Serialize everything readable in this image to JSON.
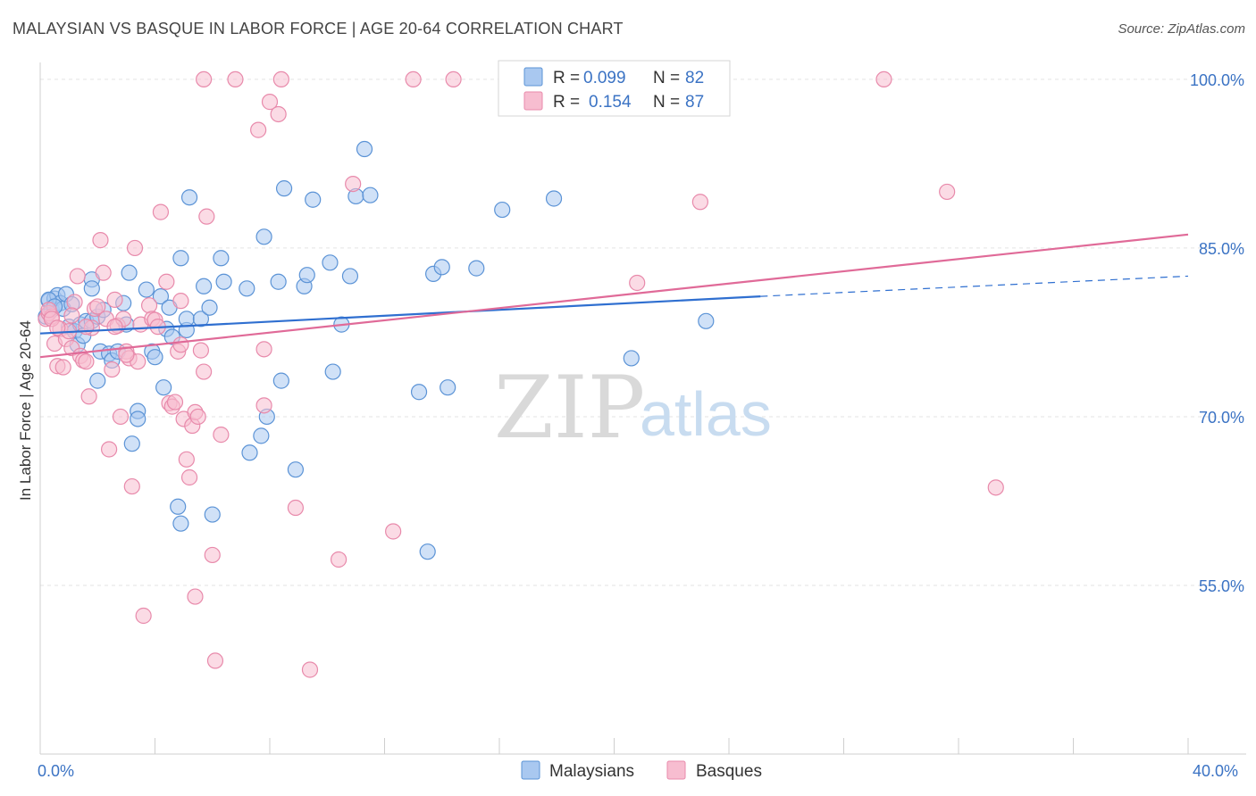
{
  "title": "MALAYSIAN VS BASQUE IN LABOR FORCE | AGE 20-64 CORRELATION CHART",
  "source": "Source: ZipAtlas.com",
  "watermark": {
    "zip": "ZIP",
    "atlas": "atlas"
  },
  "colors": {
    "blue_fill": "#a9c8f0",
    "blue_stroke": "#5b93d6",
    "blue_line": "#2f6fd0",
    "pink_fill": "#f7bdd0",
    "pink_stroke": "#e88aab",
    "pink_line": "#e06a98",
    "tick_text": "#3b73c4",
    "grid": "#e3e3e3"
  },
  "legend": [
    {
      "r_label": "R =",
      "r_value": "0.099",
      "n_label": "N =",
      "n_value": "82"
    },
    {
      "r_label": "R =",
      "r_value": "0.154",
      "n_label": "N =",
      "n_value": "87"
    }
  ],
  "chart_data": {
    "type": "scatter",
    "title": "MALAYSIAN VS BASQUE IN LABOR FORCE | AGE 20-64 CORRELATION CHART",
    "xlabel": "",
    "ylabel": "In Labor Force | Age 20-64",
    "xlim": [
      0,
      40
    ],
    "ylim": [
      40,
      101.5
    ],
    "x_tick_labels": [
      "0.0%",
      "40.0%"
    ],
    "y_ticks": [
      55,
      70,
      85,
      100
    ],
    "y_tick_labels": [
      "55.0%",
      "70.0%",
      "85.0%",
      "100.0%"
    ],
    "grid": true,
    "series": [
      {
        "name": "Malaysians",
        "R": 0.099,
        "N": 82,
        "trend": {
          "x0": 0,
          "y0": 77.4,
          "x1": 25.1,
          "y1": 80.7,
          "dash_to_x": 40,
          "dash_to_y": 82.5
        },
        "points": [
          [
            0.3,
            80.3
          ],
          [
            0.4,
            79.5
          ],
          [
            0.5,
            80.5
          ],
          [
            0.6,
            80.8
          ],
          [
            0.7,
            80.1
          ],
          [
            0.8,
            79.6
          ],
          [
            0.9,
            80.9
          ],
          [
            1.0,
            78.0
          ],
          [
            1.1,
            80.0
          ],
          [
            1.2,
            77.6
          ],
          [
            1.3,
            76.4
          ],
          [
            1.4,
            78.2
          ],
          [
            1.5,
            77.2
          ],
          [
            1.6,
            78.5
          ],
          [
            1.8,
            78.5
          ],
          [
            1.8,
            82.2
          ],
          [
            1.8,
            81.4
          ],
          [
            2.0,
            78.9
          ],
          [
            2.0,
            73.2
          ],
          [
            2.1,
            75.8
          ],
          [
            2.2,
            79.5
          ],
          [
            2.4,
            75.6
          ],
          [
            2.5,
            75.0
          ],
          [
            2.7,
            75.8
          ],
          [
            2.9,
            80.1
          ],
          [
            3.0,
            78.2
          ],
          [
            3.1,
            82.8
          ],
          [
            3.2,
            67.6
          ],
          [
            3.4,
            70.5
          ],
          [
            3.4,
            69.8
          ],
          [
            3.7,
            81.3
          ],
          [
            3.9,
            75.8
          ],
          [
            4.0,
            75.3
          ],
          [
            4.2,
            80.7
          ],
          [
            4.3,
            72.6
          ],
          [
            4.4,
            77.8
          ],
          [
            4.5,
            79.7
          ],
          [
            4.6,
            77.1
          ],
          [
            4.8,
            62.0
          ],
          [
            4.9,
            60.5
          ],
          [
            4.9,
            84.1
          ],
          [
            5.1,
            77.7
          ],
          [
            5.1,
            78.7
          ],
          [
            5.2,
            89.5
          ],
          [
            5.6,
            78.7
          ],
          [
            5.7,
            81.6
          ],
          [
            5.9,
            79.7
          ],
          [
            6.0,
            61.3
          ],
          [
            6.3,
            84.1
          ],
          [
            6.4,
            82.0
          ],
          [
            7.2,
            81.4
          ],
          [
            7.3,
            66.8
          ],
          [
            7.7,
            68.3
          ],
          [
            7.8,
            86.0
          ],
          [
            7.9,
            70.0
          ],
          [
            8.3,
            82.0
          ],
          [
            8.4,
            73.2
          ],
          [
            8.5,
            90.3
          ],
          [
            8.9,
            65.3
          ],
          [
            9.2,
            81.6
          ],
          [
            9.3,
            82.6
          ],
          [
            9.5,
            89.3
          ],
          [
            10.1,
            83.7
          ],
          [
            10.2,
            74.0
          ],
          [
            10.5,
            78.2
          ],
          [
            10.8,
            82.5
          ],
          [
            11.0,
            89.6
          ],
          [
            11.5,
            89.7
          ],
          [
            11.3,
            93.8
          ],
          [
            13.2,
            72.2
          ],
          [
            13.5,
            58.0
          ],
          [
            13.7,
            82.7
          ],
          [
            14.0,
            83.3
          ],
          [
            14.2,
            72.6
          ],
          [
            15.2,
            83.2
          ],
          [
            16.1,
            88.4
          ],
          [
            17.9,
            89.4
          ],
          [
            20.6,
            75.2
          ],
          [
            23.2,
            78.5
          ],
          [
            0.2,
            78.9
          ],
          [
            0.3,
            80.4
          ],
          [
            0.5,
            79.8
          ]
        ]
      },
      {
        "name": "Basques",
        "R": 0.154,
        "N": 87,
        "trend": {
          "x0": 0,
          "y0": 75.3,
          "x1": 40,
          "y1": 86.2
        },
        "points": [
          [
            0.2,
            78.7
          ],
          [
            0.3,
            79.2
          ],
          [
            0.4,
            78.9
          ],
          [
            0.5,
            76.5
          ],
          [
            0.6,
            74.5
          ],
          [
            0.7,
            77.8
          ],
          [
            0.8,
            74.4
          ],
          [
            0.9,
            76.9
          ],
          [
            1.0,
            77.6
          ],
          [
            1.1,
            76.1
          ],
          [
            1.2,
            80.2
          ],
          [
            1.3,
            82.5
          ],
          [
            1.4,
            75.4
          ],
          [
            1.5,
            75.0
          ],
          [
            1.6,
            74.9
          ],
          [
            1.7,
            71.8
          ],
          [
            1.8,
            77.9
          ],
          [
            1.9,
            79.6
          ],
          [
            2.0,
            79.8
          ],
          [
            2.1,
            85.7
          ],
          [
            2.2,
            82.8
          ],
          [
            2.3,
            78.7
          ],
          [
            2.4,
            67.1
          ],
          [
            2.5,
            74.2
          ],
          [
            2.6,
            80.4
          ],
          [
            2.7,
            78.1
          ],
          [
            2.8,
            70.0
          ],
          [
            2.9,
            78.7
          ],
          [
            3.0,
            75.8
          ],
          [
            3.1,
            75.2
          ],
          [
            3.2,
            63.8
          ],
          [
            3.3,
            85.0
          ],
          [
            3.4,
            74.9
          ],
          [
            3.5,
            78.2
          ],
          [
            3.6,
            52.3
          ],
          [
            3.8,
            79.9
          ],
          [
            3.9,
            78.7
          ],
          [
            4.0,
            78.6
          ],
          [
            4.2,
            88.2
          ],
          [
            4.4,
            82.0
          ],
          [
            4.5,
            71.2
          ],
          [
            4.6,
            70.9
          ],
          [
            4.7,
            71.3
          ],
          [
            4.8,
            75.8
          ],
          [
            4.9,
            80.3
          ],
          [
            5.0,
            69.8
          ],
          [
            5.1,
            66.2
          ],
          [
            5.2,
            64.6
          ],
          [
            5.3,
            69.2
          ],
          [
            5.4,
            70.4
          ],
          [
            5.5,
            70.0
          ],
          [
            5.6,
            75.9
          ],
          [
            5.7,
            74.0
          ],
          [
            5.8,
            87.8
          ],
          [
            6.0,
            57.7
          ],
          [
            6.3,
            68.4
          ],
          [
            7.6,
            95.5
          ],
          [
            7.8,
            76.0
          ],
          [
            7.8,
            71.0
          ],
          [
            8.0,
            98.0
          ],
          [
            8.3,
            96.9
          ],
          [
            8.9,
            61.9
          ],
          [
            9.4,
            47.5
          ],
          [
            10.9,
            90.7
          ],
          [
            10.4,
            57.3
          ],
          [
            12.3,
            59.8
          ],
          [
            5.4,
            54.0
          ],
          [
            6.1,
            48.3
          ],
          [
            5.7,
            100
          ],
          [
            6.8,
            100
          ],
          [
            8.4,
            100
          ],
          [
            13.0,
            100
          ],
          [
            14.4,
            100
          ],
          [
            29.4,
            100
          ],
          [
            23.0,
            89.1
          ],
          [
            31.6,
            90.0
          ],
          [
            33.3,
            63.7
          ],
          [
            20.8,
            81.9
          ],
          [
            0.3,
            79.5
          ],
          [
            0.4,
            78.7
          ],
          [
            0.6,
            77.9
          ],
          [
            1.1,
            79.0
          ],
          [
            1.6,
            78.0
          ],
          [
            2.6,
            78.0
          ],
          [
            3.0,
            75.5
          ],
          [
            4.1,
            78.0
          ],
          [
            4.9,
            76.4
          ]
        ]
      }
    ]
  },
  "bottom_legend": [
    "Malaysians",
    "Basques"
  ]
}
